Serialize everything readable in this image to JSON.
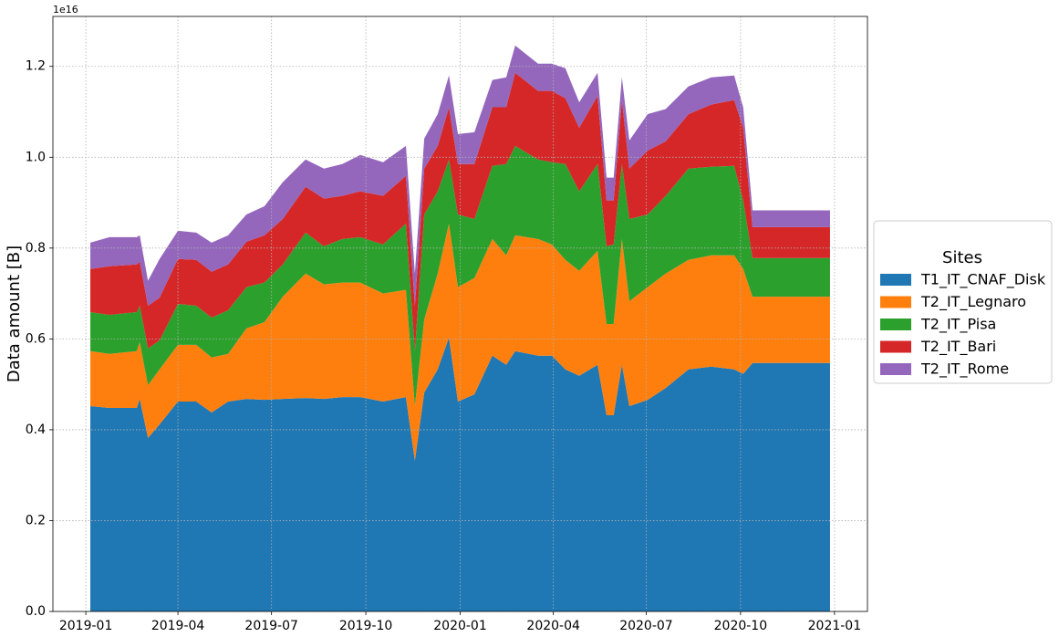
{
  "chart_data": {
    "type": "stacked_area",
    "y_label": "Data amount [B]",
    "offset_label": "1e16",
    "legend_title": "Sites",
    "legend": "right-outside",
    "grid": true,
    "xlim": [
      2018.912,
      2021.088
    ],
    "ylim": [
      0,
      1.31
    ],
    "xticks": [
      {
        "value": 2019.0,
        "label": "2019-01"
      },
      {
        "value": 2019.246,
        "label": "2019-04"
      },
      {
        "value": 2019.496,
        "label": "2019-07"
      },
      {
        "value": 2019.748,
        "label": "2019-10"
      },
      {
        "value": 2020.0,
        "label": "2020-01"
      },
      {
        "value": 2020.249,
        "label": "2020-04"
      },
      {
        "value": 2020.497,
        "label": "2020-07"
      },
      {
        "value": 2020.749,
        "label": "2020-10"
      },
      {
        "value": 2021.0,
        "label": "2021-01"
      }
    ],
    "yticks": [
      {
        "value": 0,
        "label": "0.0"
      },
      0.2,
      0.4,
      0.6,
      0.8,
      {
        "value": 1,
        "label": "1.0"
      },
      1.2
    ],
    "x": [
      2019.012,
      2019.063,
      2019.136,
      2019.144,
      2019.166,
      2019.197,
      2019.246,
      2019.295,
      2019.336,
      2019.38,
      2019.429,
      2019.477,
      2019.526,
      2019.587,
      2019.636,
      2019.685,
      2019.733,
      2019.794,
      2019.855,
      2019.879,
      2019.904,
      2019.94,
      2019.97,
      2019.994,
      2020.038,
      2020.086,
      2020.123,
      2020.147,
      2020.208,
      2020.245,
      2020.281,
      2020.318,
      2020.367,
      2020.391,
      2020.41,
      2020.432,
      2020.452,
      2020.501,
      2020.549,
      2020.61,
      2020.671,
      2020.732,
      2020.756,
      2020.781,
      2020.988
    ],
    "series": [
      {
        "name": "T1_IT_CNAF_Disk",
        "color": "#1f77b4",
        "values": [
          0.452,
          0.448,
          0.448,
          0.468,
          0.382,
          0.412,
          0.462,
          0.462,
          0.438,
          0.462,
          0.468,
          0.466,
          0.468,
          0.47,
          0.468,
          0.472,
          0.472,
          0.462,
          0.472,
          0.332,
          0.482,
          0.533,
          0.603,
          0.462,
          0.478,
          0.563,
          0.543,
          0.573,
          0.563,
          0.563,
          0.533,
          0.519,
          0.543,
          0.432,
          0.432,
          0.543,
          0.452,
          0.466,
          0.492,
          0.533,
          0.539,
          0.533,
          0.523,
          0.547,
          0.547
        ]
      },
      {
        "name": "T2_IT_Legnaro",
        "color": "#ff7f0e",
        "values": [
          0.121,
          0.119,
          0.125,
          0.125,
          0.116,
          0.121,
          0.125,
          0.125,
          0.121,
          0.105,
          0.155,
          0.171,
          0.225,
          0.274,
          0.252,
          0.252,
          0.252,
          0.238,
          0.236,
          0.12,
          0.161,
          0.211,
          0.251,
          0.252,
          0.256,
          0.257,
          0.241,
          0.255,
          0.257,
          0.245,
          0.241,
          0.231,
          0.251,
          0.201,
          0.201,
          0.277,
          0.231,
          0.248,
          0.252,
          0.241,
          0.245,
          0.251,
          0.231,
          0.146,
          0.146
        ]
      },
      {
        "name": "T2_IT_Pisa",
        "color": "#2ca02c",
        "values": [
          0.086,
          0.086,
          0.086,
          0.08,
          0.081,
          0.064,
          0.09,
          0.086,
          0.088,
          0.096,
          0.091,
          0.087,
          0.071,
          0.09,
          0.084,
          0.096,
          0.1,
          0.108,
          0.146,
          0.121,
          0.231,
          0.181,
          0.141,
          0.16,
          0.13,
          0.161,
          0.201,
          0.197,
          0.175,
          0.181,
          0.211,
          0.175,
          0.191,
          0.171,
          0.175,
          0.165,
          0.181,
          0.16,
          0.171,
          0.201,
          0.195,
          0.197,
          0.151,
          0.085,
          0.085
        ]
      },
      {
        "name": "T2_IT_Bari",
        "color": "#d62728",
        "values": [
          0.095,
          0.107,
          0.105,
          0.097,
          0.094,
          0.094,
          0.099,
          0.101,
          0.101,
          0.101,
          0.1,
          0.104,
          0.1,
          0.101,
          0.105,
          0.095,
          0.101,
          0.107,
          0.105,
          0.1,
          0.101,
          0.1,
          0.115,
          0.111,
          0.121,
          0.129,
          0.125,
          0.161,
          0.151,
          0.157,
          0.145,
          0.14,
          0.15,
          0.101,
          0.097,
          0.141,
          0.111,
          0.141,
          0.12,
          0.12,
          0.137,
          0.145,
          0.16,
          0.068,
          0.068
        ]
      },
      {
        "name": "T2_IT_Rome",
        "color": "#9467bd",
        "values": [
          0.058,
          0.064,
          0.06,
          0.058,
          0.055,
          0.085,
          0.062,
          0.06,
          0.064,
          0.064,
          0.06,
          0.064,
          0.081,
          0.06,
          0.066,
          0.07,
          0.08,
          0.074,
          0.066,
          0.071,
          0.066,
          0.07,
          0.07,
          0.066,
          0.07,
          0.06,
          0.066,
          0.06,
          0.06,
          0.06,
          0.066,
          0.056,
          0.051,
          0.05,
          0.05,
          0.05,
          0.062,
          0.08,
          0.071,
          0.061,
          0.06,
          0.054,
          0.045,
          0.037,
          0.037
        ]
      }
    ]
  }
}
